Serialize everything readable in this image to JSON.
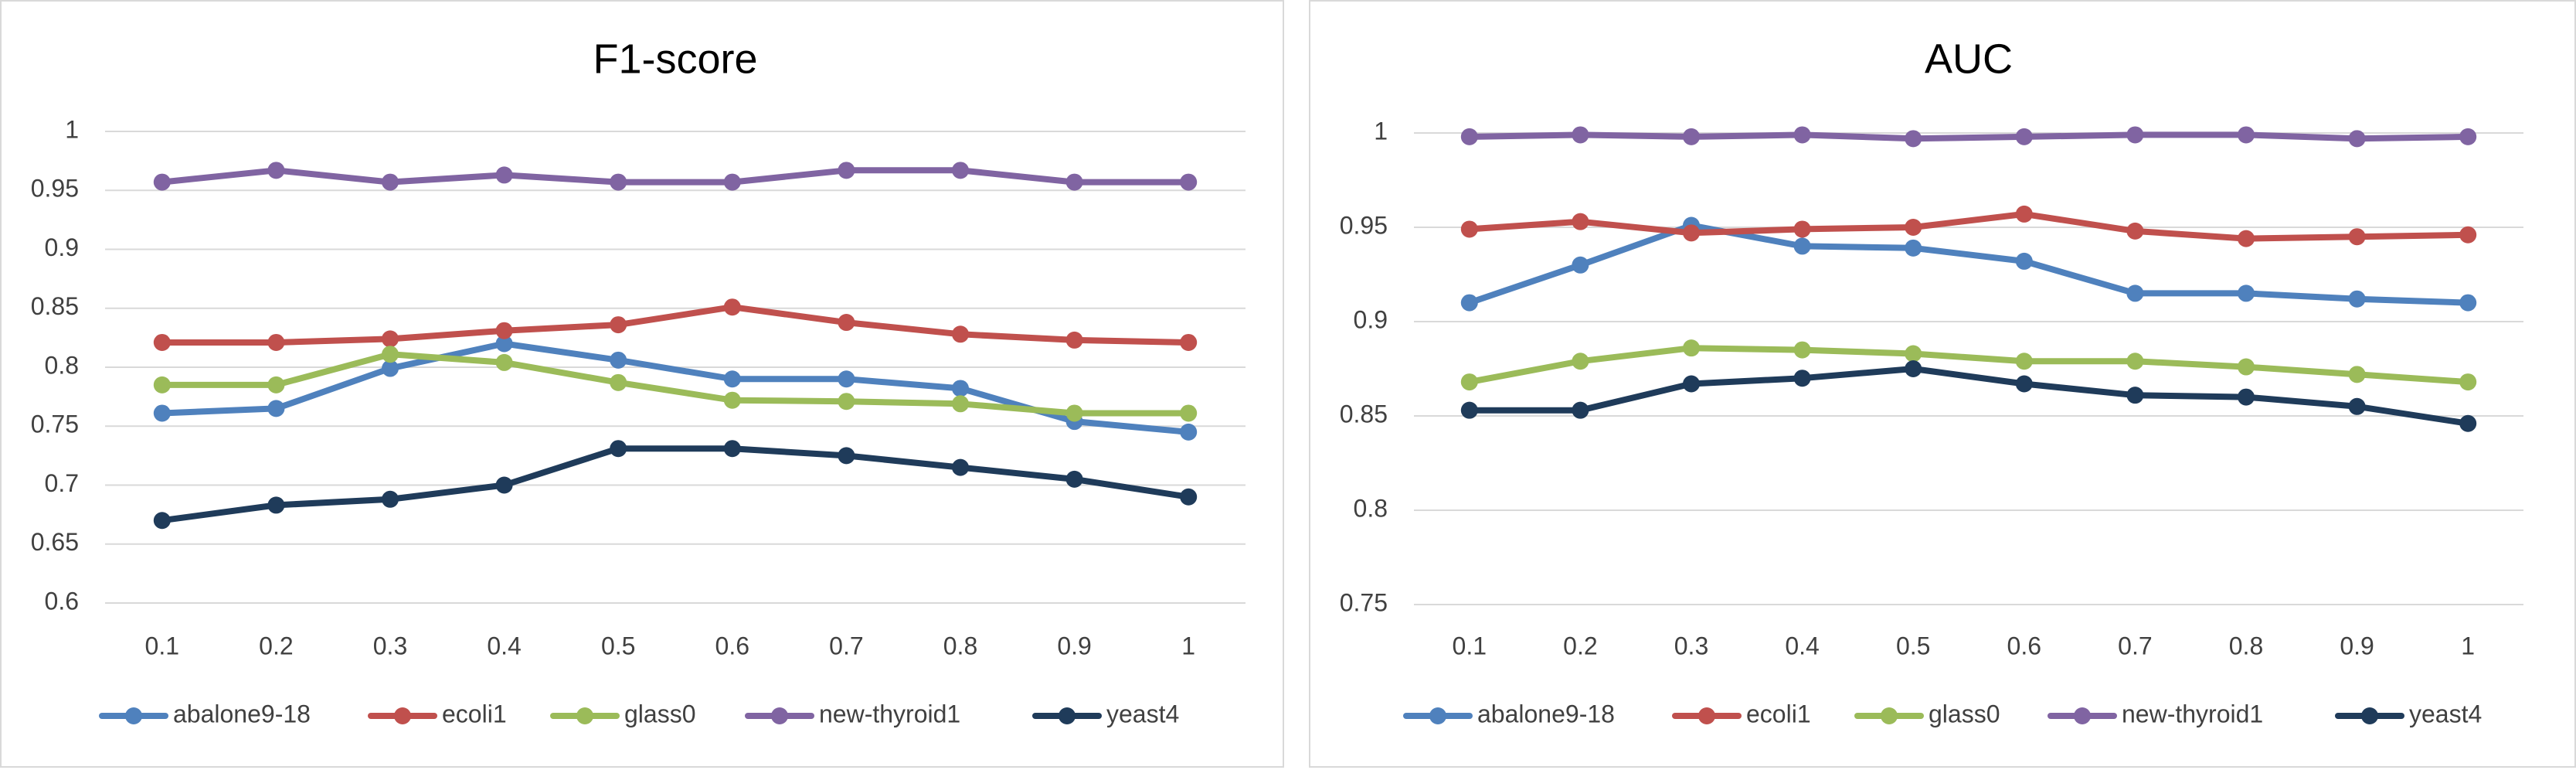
{
  "chart_data": [
    {
      "type": "line",
      "title": "F1-score",
      "x": [
        "0.1",
        "0.2",
        "0.3",
        "0.4",
        "0.5",
        "0.6",
        "0.7",
        "0.8",
        "0.9",
        "1"
      ],
      "ylim": [
        0.6,
        1.0
      ],
      "yticks": [
        "0.6",
        "0.65",
        "0.7",
        "0.75",
        "0.8",
        "0.85",
        "0.9",
        "0.95",
        "1"
      ],
      "grid": true,
      "legend_position": "bottom",
      "series": [
        {
          "name": "abalone9-18",
          "color": "#4f81bd",
          "values": [
            0.761,
            0.765,
            0.799,
            0.82,
            0.806,
            0.79,
            0.79,
            0.782,
            0.754,
            0.745
          ]
        },
        {
          "name": "ecoli1",
          "color": "#c0504d",
          "values": [
            0.821,
            0.821,
            0.824,
            0.831,
            0.836,
            0.851,
            0.838,
            0.828,
            0.823,
            0.821
          ]
        },
        {
          "name": "glass0",
          "color": "#9bbb59",
          "values": [
            0.785,
            0.785,
            0.811,
            0.804,
            0.787,
            0.772,
            0.771,
            0.769,
            0.761,
            0.761
          ]
        },
        {
          "name": "new-thyroid1",
          "color": "#8064a2",
          "values": [
            0.957,
            0.967,
            0.957,
            0.963,
            0.957,
            0.957,
            0.967,
            0.967,
            0.957,
            0.957
          ]
        },
        {
          "name": "yeast4",
          "color": "#1f3b5a",
          "values": [
            0.67,
            0.683,
            0.688,
            0.7,
            0.731,
            0.731,
            0.725,
            0.715,
            0.705,
            0.69
          ]
        }
      ]
    },
    {
      "type": "line",
      "title": "AUC",
      "x": [
        "0.1",
        "0.2",
        "0.3",
        "0.4",
        "0.5",
        "0.6",
        "0.7",
        "0.8",
        "0.9",
        "1"
      ],
      "ylim": [
        0.75,
        1.0
      ],
      "yticks": [
        "0.75",
        "0.8",
        "0.85",
        "0.9",
        "0.95",
        "1"
      ],
      "grid": true,
      "legend_position": "bottom",
      "series": [
        {
          "name": "abalone9-18",
          "color": "#4f81bd",
          "values": [
            0.91,
            0.93,
            0.951,
            0.94,
            0.939,
            0.932,
            0.915,
            0.915,
            0.912,
            0.91
          ]
        },
        {
          "name": "ecoli1",
          "color": "#c0504d",
          "values": [
            0.949,
            0.953,
            0.947,
            0.949,
            0.95,
            0.957,
            0.948,
            0.944,
            0.945,
            0.946
          ]
        },
        {
          "name": "glass0",
          "color": "#9bbb59",
          "values": [
            0.868,
            0.879,
            0.886,
            0.885,
            0.883,
            0.879,
            0.879,
            0.876,
            0.872,
            0.868
          ]
        },
        {
          "name": "new-thyroid1",
          "color": "#8064a2",
          "values": [
            0.998,
            0.999,
            0.998,
            0.999,
            0.997,
            0.998,
            0.999,
            0.999,
            0.997,
            0.998
          ]
        },
        {
          "name": "yeast4",
          "color": "#1f3b5a",
          "values": [
            0.853,
            0.853,
            0.867,
            0.87,
            0.875,
            0.867,
            0.861,
            0.86,
            0.855,
            0.846
          ]
        }
      ]
    }
  ]
}
